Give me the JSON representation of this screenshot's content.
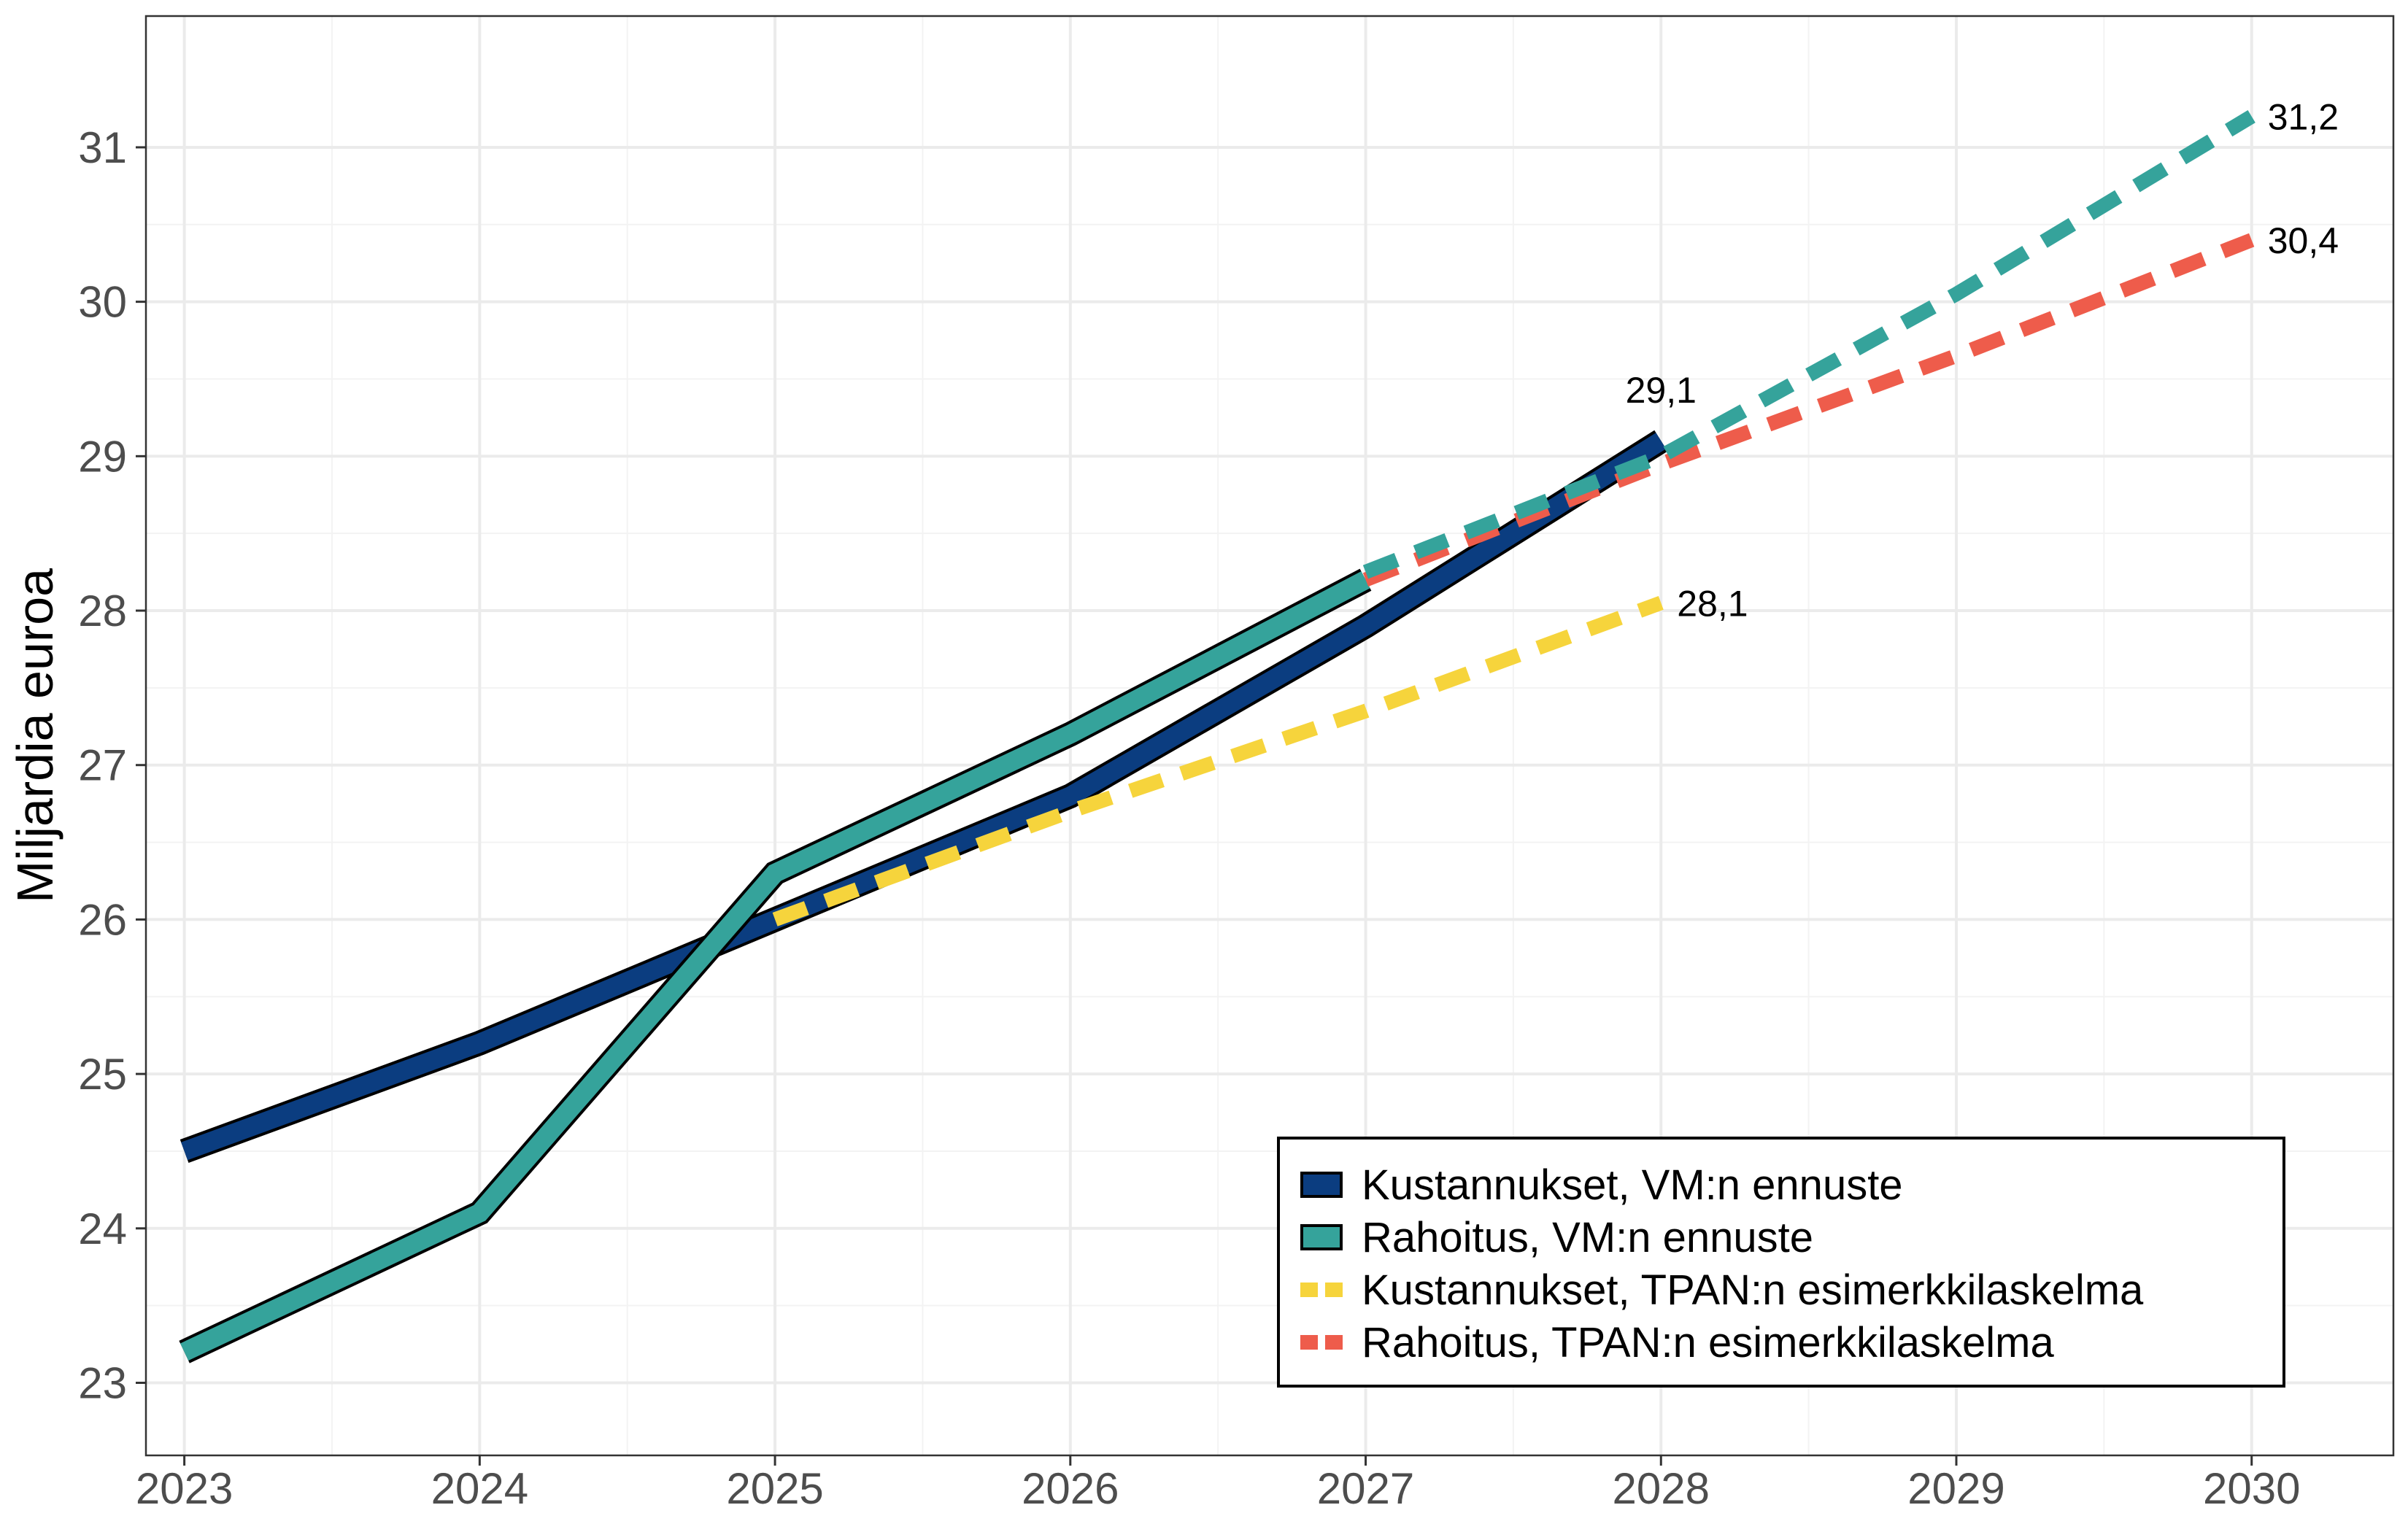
{
  "chart_data": {
    "type": "line",
    "title": "",
    "xlabel": "",
    "ylabel": "Miljardia euroa",
    "x": [
      2023,
      2024,
      2025,
      2026,
      2027,
      2028,
      2029,
      2030
    ],
    "x_tick_labels": [
      "2023",
      "2024",
      "2025",
      "2026",
      "2027",
      "2028",
      "2029",
      "2030"
    ],
    "xlim": [
      2022.87,
      2030.48
    ],
    "ylim": [
      22.53,
      31.85
    ],
    "y_ticks": [
      23,
      24,
      25,
      26,
      27,
      28,
      29,
      30,
      31
    ],
    "y_tick_labels": [
      "23",
      "24",
      "25",
      "26",
      "27",
      "28",
      "29",
      "30",
      "31"
    ],
    "grid": true,
    "legend_position": "bottom-right",
    "series": [
      {
        "name": "Kustannukset, VM:n ennuste",
        "style": "solid",
        "color": "#0b3d80",
        "outline": "#000000",
        "x": [
          2023,
          2024,
          2025,
          2026,
          2027,
          2028
        ],
        "values": [
          24.5,
          25.2,
          26.0,
          26.8,
          27.9,
          29.1
        ]
      },
      {
        "name": "Rahoitus, VM:n ennuste",
        "style": "solid",
        "color": "#35a39b",
        "outline": "#000000",
        "x": [
          2023,
          2024,
          2025,
          2026,
          2027
        ],
        "values": [
          23.2,
          24.1,
          26.3,
          27.2,
          28.2
        ]
      },
      {
        "name": "Kustannukset, TPAN:n esimerkkilaskelma",
        "style": "dashed",
        "color": "#f6d43c",
        "x": [
          2025,
          2026,
          2027,
          2028
        ],
        "values": [
          26.0,
          26.7,
          27.35,
          28.05
        ]
      },
      {
        "name": "Rahoitus, TPAN:n esimerkkilaskelma",
        "style": "dashed",
        "color": "#ee5c4b",
        "x": [
          2027,
          2028,
          2029,
          2030
        ],
        "values": [
          28.2,
          28.95,
          29.65,
          30.4
        ]
      },
      {
        "name": "Rahoitus, VM:n ennuste (jatko)",
        "style": "dashed",
        "color": "#35a39b",
        "show_in_legend": false,
        "x": [
          2027,
          2028,
          2029,
          2030
        ],
        "values": [
          28.25,
          29.0,
          30.05,
          31.2
        ]
      }
    ],
    "annotations": [
      {
        "text": "29,1",
        "x": 2028,
        "y": 29.1,
        "placement": "above"
      },
      {
        "text": "28,1",
        "x": 2028,
        "y": 28.05,
        "placement": "right"
      },
      {
        "text": "31,2",
        "x": 2030,
        "y": 31.2,
        "placement": "right"
      },
      {
        "text": "30,4",
        "x": 2030,
        "y": 30.4,
        "placement": "right"
      }
    ]
  }
}
